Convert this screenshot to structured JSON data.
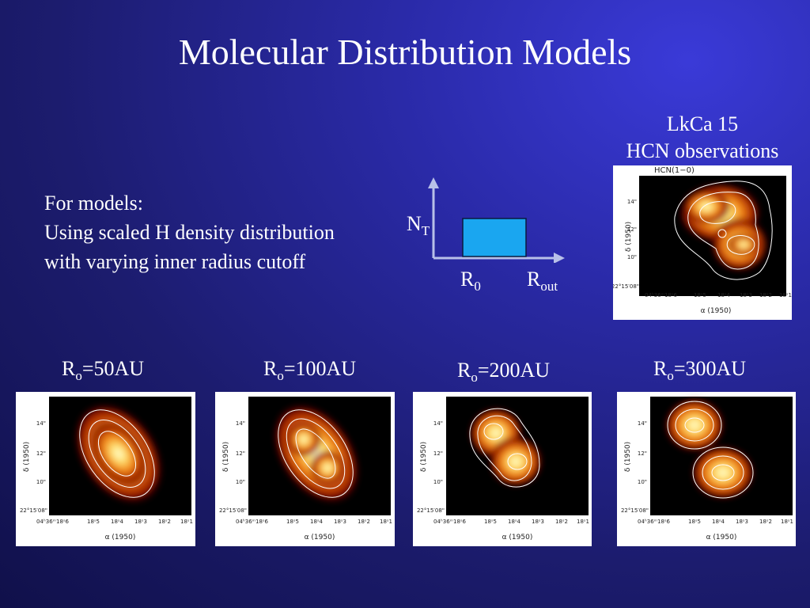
{
  "title": "Molecular Distribution Models",
  "observation": {
    "line1": "LkCa 15",
    "line2": "HCN observations",
    "panel_label": "HCN(1−0)"
  },
  "models_text": {
    "line1": "For models:",
    "line2": "Using scaled H density distribution",
    "line3": "with varying inner radius cutoff"
  },
  "diagram": {
    "y_label": "N",
    "y_label_sub": "T",
    "x_label_inner": "R",
    "x_label_inner_sub": "0",
    "x_label_outer": "R",
    "x_label_outer_sub": "out",
    "box_color": "#1aa6f0"
  },
  "model_labels": [
    {
      "prefix": "R",
      "sub": "o",
      "value": "=50AU"
    },
    {
      "prefix": "R",
      "sub": "o",
      "value": "=100AU"
    },
    {
      "prefix": "R",
      "sub": "o",
      "value": "=200AU"
    },
    {
      "prefix": "R",
      "sub": "o",
      "value": "=300AU"
    }
  ],
  "axes": {
    "x_title": "α (1950)",
    "y_title": "δ (1950)",
    "y_ticks": [
      "14\"",
      "12\"",
      "10\"",
      "22°15′08\""
    ],
    "x_ticks": [
      "04ʰ36ᵐ18ˢ6",
      "18ˢ5",
      "18ˢ4",
      "18ˢ3",
      "18ˢ2",
      "18ˢ1"
    ]
  }
}
